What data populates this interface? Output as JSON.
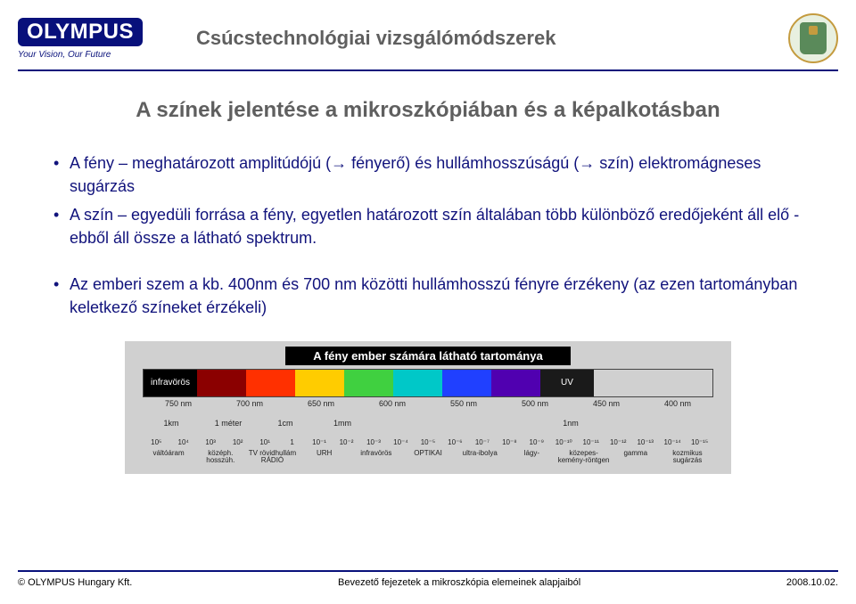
{
  "header": {
    "logo_text": "OLYMPUS",
    "tagline": "Your Vision, Our Future",
    "title": "Csúcstechnológiai vizsgálómódszerek",
    "logo_bg": "#08107b",
    "title_color": "#5f5f5f"
  },
  "slide": {
    "title": "A színek jelentése a mikroszkópiában és a képalkotásban",
    "bullets_a": [
      "A fény – meghatározott amplitúdójú (→ fényerő) és hullámhosszúságú (→ szín) elektromágneses sugárzás",
      "A szín – egyedüli forrása a fény, egyetlen határozott szín általában több különböző eredőjeként áll elő - ebből áll össze a látható spektrum."
    ],
    "bullets_b": [
      "Az emberi szem a kb. 400nm és 700 nm közötti hullámhosszú fényre érzékeny (az ezen tartományban keletkező színeket érzékeli)"
    ]
  },
  "spectrum": {
    "title": "A fény ember számára látható tartománya",
    "left_label": "infravörös",
    "right_label": "UV",
    "segments": [
      {
        "color": "#000000",
        "width": 60
      },
      {
        "color": "#8b0000",
        "width": 55
      },
      {
        "color": "#ff3000",
        "width": 55
      },
      {
        "color": "#ffcc00",
        "width": 55
      },
      {
        "color": "#40d040",
        "width": 55
      },
      {
        "color": "#00c8c8",
        "width": 55
      },
      {
        "color": "#2040ff",
        "width": 55
      },
      {
        "color": "#5000b0",
        "width": 55
      },
      {
        "color": "#1a1a1a",
        "width": 60
      }
    ],
    "nm_labels": [
      "750 nm",
      "700 nm",
      "650 nm",
      "600 nm",
      "550 nm",
      "500 nm",
      "450 nm",
      "400 nm"
    ],
    "scale_top": [
      "1km",
      "1 méter",
      "1cm",
      "1mm",
      "",
      "",
      "",
      "1nm",
      "",
      ""
    ],
    "powers": [
      "10⁵",
      "10⁴",
      "10³",
      "10²",
      "10¹",
      "1",
      "10⁻¹",
      "10⁻²",
      "10⁻³",
      "10⁻⁴",
      "10⁻⁵",
      "10⁻⁶",
      "10⁻⁷",
      "10⁻⁸",
      "10⁻⁹",
      "10⁻¹⁰",
      "10⁻¹¹",
      "10⁻¹²",
      "10⁻¹³",
      "10⁻¹⁴",
      "10⁻¹⁵"
    ],
    "bands": [
      "váltóáram",
      "középh. hosszúh.",
      "TV rövidhullám RÁDIÓ",
      "URH",
      "infravörös",
      "OPTIKAI",
      "ultra-ibolya",
      "lágy-",
      "közepes- kemény-röntgen",
      "gamma",
      "kozmikus sugárzás"
    ]
  },
  "footer": {
    "left": "© OLYMPUS Hungary Kft.",
    "center": "Bevezető fejezetek a mikroszkópia elemeinek alapjaiból",
    "right": "2008.10.02."
  }
}
